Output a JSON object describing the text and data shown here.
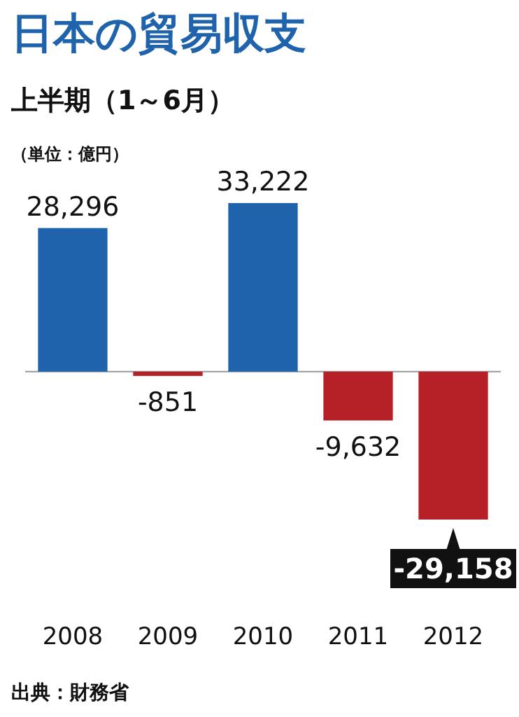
{
  "chart_data": {
    "type": "bar",
    "title": "日本の貿易収支",
    "subtitle": "上半期（1～6月）",
    "annotations": [
      "（単位：億円）",
      "出典：財務省"
    ],
    "categories": [
      "2008",
      "2009",
      "2010",
      "2011",
      "2012"
    ],
    "values": [
      28296,
      -851,
      33222,
      -9632,
      -29158
    ],
    "colors": [
      "#1f63ac",
      "#b52126",
      "#1f63ac",
      "#b52126",
      "#b52126"
    ],
    "value_labels": [
      "28,296",
      "-851",
      "33,222",
      "-9,632",
      "-29,158"
    ]
  }
}
